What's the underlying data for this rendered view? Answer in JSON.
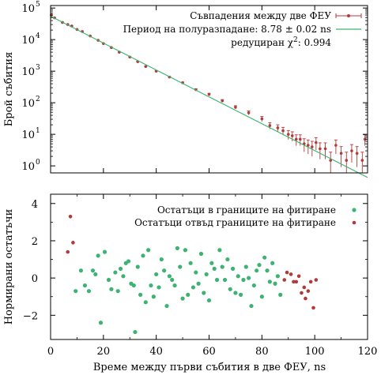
{
  "chart_data": [
    {
      "type": "scatter",
      "subtype": "log-histogram-with-fit",
      "ylabel": "Брой събития",
      "yscale": "log",
      "ylim": [
        0.6,
        120000
      ],
      "xlim": [
        0,
        120
      ],
      "yticks": [
        1,
        10,
        100,
        1000,
        10000,
        100000
      ],
      "ytick_labels": [
        "10",
        "10",
        "10",
        "10",
        "10",
        "10"
      ],
      "ytick_exponents": [
        "0",
        "1",
        "2",
        "3",
        "4",
        "5"
      ],
      "grid": false,
      "legend_position": "top-right",
      "legend": {
        "data_label": "Съвпадения между две ФЕУ",
        "fit_label": "Период на полуразпадане: 8.78 ± 0.02 ns",
        "chi_prefix": "редуциран χ",
        "chi_sup": "2",
        "chi_value": ": 0.994"
      },
      "colors": {
        "data": "#b23a3a",
        "fit": "#3cb371"
      },
      "fit": {
        "name": "Период на полуразпадане: 8.78 ± 0.02 ns",
        "x": [
          0,
          120
        ],
        "y": [
          55000,
          0.43
        ]
      },
      "series": [
        {
          "name": "Съвпадения между две ФЕУ",
          "points": [
            [
              0.3,
              60000
            ],
            [
              1.5,
              49000
            ],
            [
              4.5,
              35000
            ],
            [
              6.5,
              30000
            ],
            [
              8,
              27000
            ],
            [
              10,
              21000
            ],
            [
              12,
              18000
            ],
            [
              15,
              13000
            ],
            [
              18,
              9500
            ],
            [
              20,
              7500
            ],
            [
              23,
              5600
            ],
            [
              26,
              4000
            ],
            [
              30,
              2800
            ],
            [
              33,
              2000
            ],
            [
              36,
              1400
            ],
            [
              40,
              1000
            ],
            [
              45,
              650
            ],
            [
              50,
              430
            ],
            [
              55,
              260
            ],
            [
              60,
              185
            ],
            [
              65,
              115
            ],
            [
              70,
              72
            ],
            [
              75,
              48
            ],
            [
              80,
              31
            ],
            [
              83,
              19
            ],
            [
              86,
              16
            ],
            [
              88,
              13
            ],
            [
              90,
              10
            ],
            [
              91.5,
              9
            ],
            [
              93,
              7
            ],
            [
              94.5,
              7
            ],
            [
              96,
              5
            ],
            [
              97.5,
              4.5
            ],
            [
              99,
              4
            ],
            [
              100.5,
              5.5
            ],
            [
              102,
              3.5
            ],
            [
              104,
              3.5
            ],
            [
              106,
              1.5
            ],
            [
              108,
              4.5
            ],
            [
              110,
              2.5
            ],
            [
              112,
              1.5
            ],
            [
              114,
              3
            ],
            [
              116,
              2.5
            ],
            [
              118,
              1.5
            ],
            [
              119,
              7
            ]
          ]
        }
      ]
    },
    {
      "type": "scatter",
      "xlabel": "Време между първи събития в две ФЕУ, ns",
      "ylabel": "Нормирани остатъчи",
      "xlim": [
        0,
        120
      ],
      "ylim": [
        -3.3,
        4.5
      ],
      "xticks": [
        0,
        20,
        40,
        60,
        80,
        100,
        120
      ],
      "yticks": [
        -2,
        0,
        2,
        4
      ],
      "ytick_labels": [
        "−2",
        "0",
        "2",
        "4"
      ],
      "grid": false,
      "legend_position": "top-right",
      "colors": {
        "inside": "#3cb371",
        "outside": "#b23a3a"
      },
      "series": [
        {
          "name": "Остатъци в границите на фитиране",
          "points": [
            [
              9.5,
              -0.7
            ],
            [
              11.5,
              0.4
            ],
            [
              13,
              -0.4
            ],
            [
              14.5,
              -0.7
            ],
            [
              16,
              0.4
            ],
            [
              17,
              0.2
            ],
            [
              18,
              1.2
            ],
            [
              19,
              -2.4
            ],
            [
              20.5,
              1.4
            ],
            [
              22,
              -0.1
            ],
            [
              23,
              -0.6
            ],
            [
              24.5,
              0.3
            ],
            [
              25.5,
              -0.7
            ],
            [
              26.5,
              0.5
            ],
            [
              27.5,
              0.1
            ],
            [
              28.5,
              0.8
            ],
            [
              29.5,
              0.9
            ],
            [
              30.5,
              -0.3
            ],
            [
              31.5,
              -0.4
            ],
            [
              32,
              -2.9
            ],
            [
              33,
              0.6
            ],
            [
              34,
              -0.9
            ],
            [
              35,
              1.2
            ],
            [
              36,
              -1.3
            ],
            [
              37,
              1.5
            ],
            [
              38,
              -0.4
            ],
            [
              39,
              -1.0
            ],
            [
              40,
              0.2
            ],
            [
              41,
              -0.5
            ],
            [
              42,
              1.0
            ],
            [
              43,
              0.4
            ],
            [
              44,
              -1.5
            ],
            [
              45,
              0.1
            ],
            [
              46,
              -0.1
            ],
            [
              47,
              -0.4
            ],
            [
              48,
              1.6
            ],
            [
              49,
              0.6
            ],
            [
              50,
              -1.1
            ],
            [
              51,
              1.5
            ],
            [
              52,
              -0.9
            ],
            [
              53,
              0.8
            ],
            [
              54,
              -0.5
            ],
            [
              55,
              0.3
            ],
            [
              56,
              -0.3
            ],
            [
              57,
              1.3
            ],
            [
              58,
              -0.8
            ],
            [
              59,
              0.2
            ],
            [
              60,
              -1.2
            ],
            [
              61,
              0.8
            ],
            [
              62,
              0.5
            ],
            [
              63,
              -0.1
            ],
            [
              64,
              1.5
            ],
            [
              65,
              0.6
            ],
            [
              66,
              -0.1
            ],
            [
              67,
              1.0
            ],
            [
              68,
              -0.6
            ],
            [
              69,
              0.5
            ],
            [
              70,
              -0.8
            ],
            [
              71,
              0.1
            ],
            [
              72,
              -0.9
            ],
            [
              73,
              -0.1
            ],
            [
              74,
              0.6
            ],
            [
              75,
              0.0
            ],
            [
              76,
              -1.5
            ],
            [
              77,
              -0.4
            ],
            [
              78,
              0.4
            ],
            [
              79,
              0.7
            ],
            [
              80,
              -1.0
            ],
            [
              81,
              1.1
            ],
            [
              82,
              0.4
            ],
            [
              83,
              -0.2
            ],
            [
              84,
              0.8
            ],
            [
              85,
              -0.3
            ],
            [
              86,
              0.1
            ],
            [
              87,
              -0.9
            ]
          ]
        },
        {
          "name": "Остатъци отвъд границите на фитиране",
          "points": [
            [
              6.5,
              1.4
            ],
            [
              7.5,
              3.3
            ],
            [
              8.5,
              1.9
            ],
            [
              88.5,
              -0.1
            ],
            [
              89.5,
              0.3
            ],
            [
              91,
              0.2
            ],
            [
              92,
              -0.2
            ],
            [
              93,
              -0.2
            ],
            [
              94,
              0.1
            ],
            [
              95,
              -0.8
            ],
            [
              96,
              -0.5
            ],
            [
              96.5,
              -1.1
            ],
            [
              97.5,
              -0.7
            ],
            [
              98.5,
              -0.2
            ],
            [
              99.5,
              -1.6
            ],
            [
              100.5,
              -0.1
            ]
          ]
        }
      ]
    }
  ]
}
